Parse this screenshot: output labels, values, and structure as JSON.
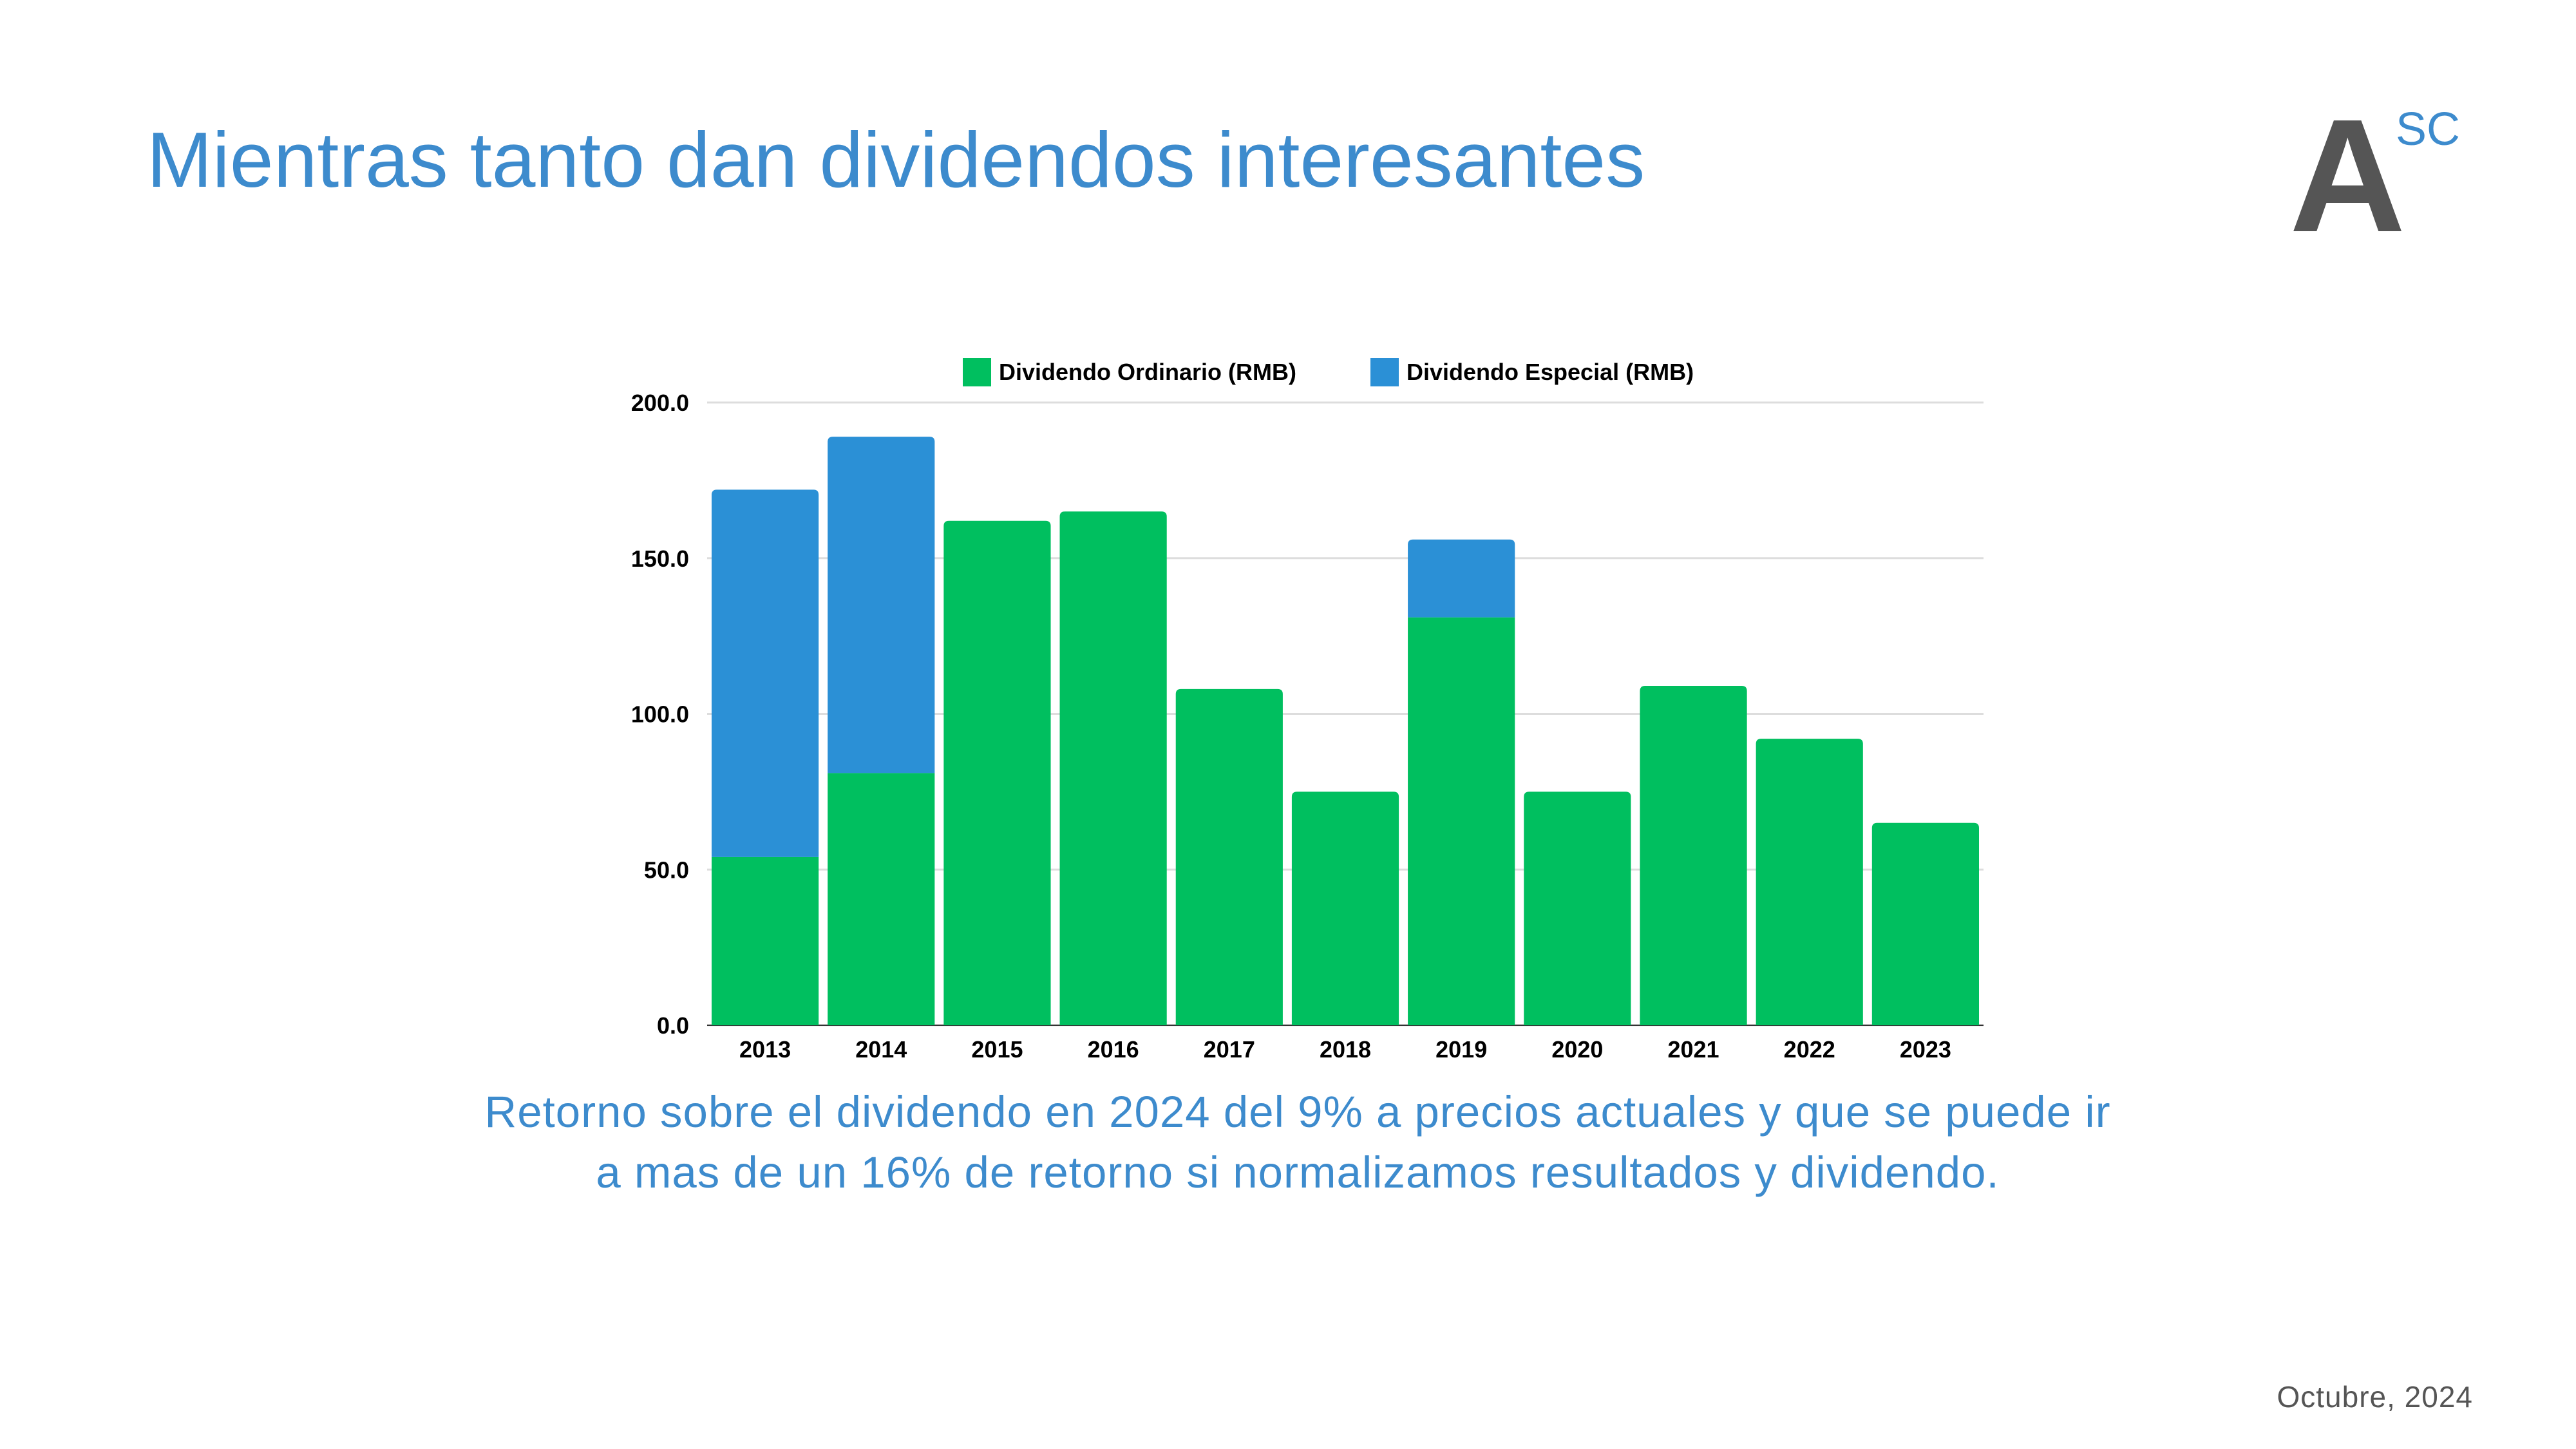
{
  "slide": {
    "title": "Mientras tanto dan dividendos interesantes",
    "subtitle": "Retorno sobre el dividendo en 2024 del 9% a precios actuales y que se puede ir a mas de un 16% de retorno si normalizamos resultados y dividendo.",
    "date": "Octubre, 2024",
    "logo": {
      "main": "A",
      "superscript": "SC"
    }
  },
  "colors": {
    "title": "#3D8BCD",
    "ordinario": "#00BF5F",
    "especial": "#2B90D6",
    "grid": "#DDDDDD",
    "axis_text": "#000000"
  },
  "chart_data": {
    "type": "bar",
    "stacked": true,
    "categories": [
      "2013",
      "2014",
      "2015",
      "2016",
      "2017",
      "2018",
      "2019",
      "2020",
      "2021",
      "2022",
      "2023"
    ],
    "series": [
      {
        "name": "Dividendo Ordinario (RMB)",
        "values": [
          54,
          81,
          162,
          165,
          108,
          75,
          131,
          75,
          109,
          92,
          65
        ]
      },
      {
        "name": "Dividendo Especial (RMB)",
        "values": [
          118,
          108,
          0,
          0,
          0,
          0,
          25,
          0,
          0,
          0,
          0
        ]
      }
    ],
    "yticks": [
      "0.0",
      "50.0",
      "100.0",
      "150.0",
      "200.0"
    ],
    "ylim": [
      0,
      200
    ],
    "grid": true,
    "legend": "top-center",
    "title": "",
    "xlabel": "",
    "ylabel": ""
  }
}
